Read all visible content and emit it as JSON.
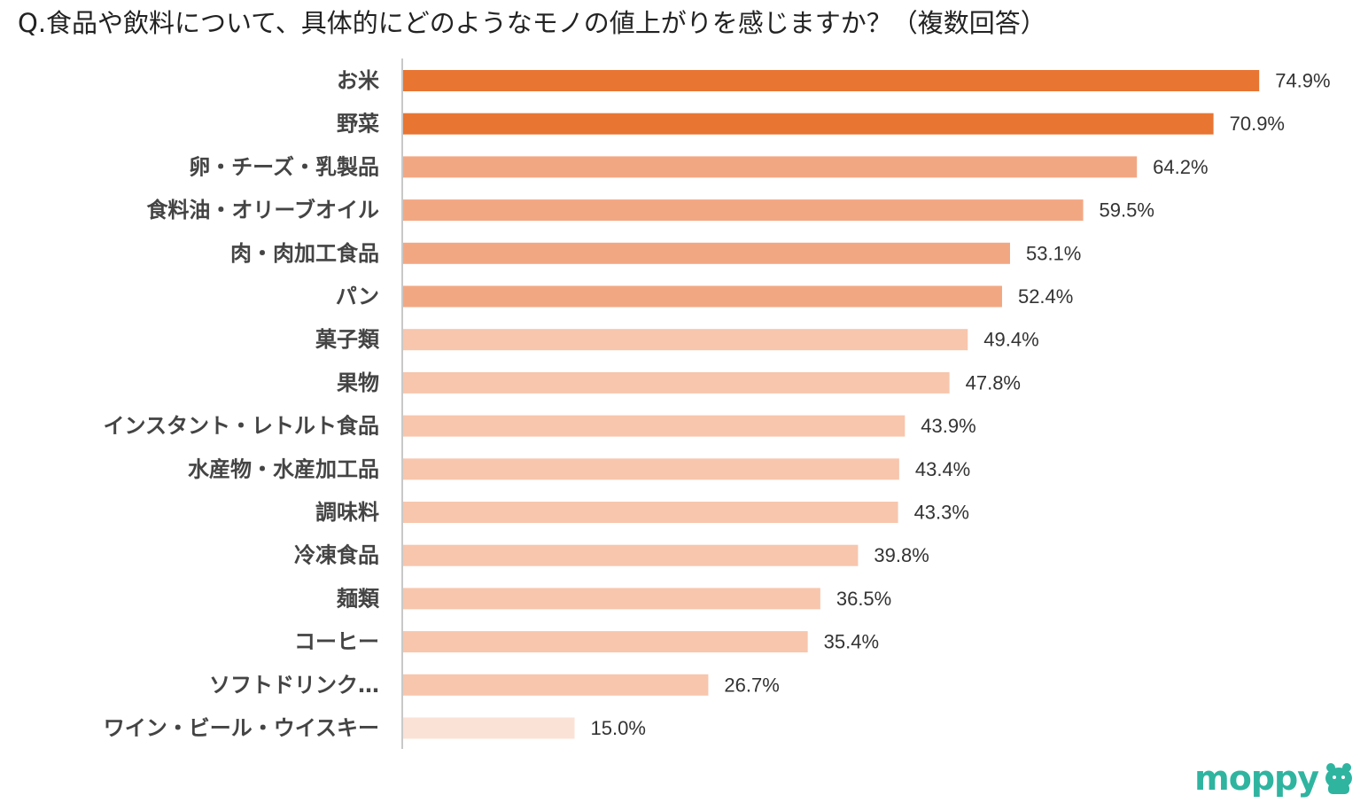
{
  "title": "Q.食品や飲料について、具体的にどのようなモノの値上がりを感じますか？（複数回答）",
  "chart_data": {
    "type": "bar",
    "orientation": "horizontal",
    "title": "Q.食品や飲料について、具体的にどのようなモノの値上がりを感じますか？（複数回答）",
    "xlabel": "",
    "ylabel": "",
    "xlim": [
      0,
      80
    ],
    "grid": false,
    "categories": [
      "お米",
      "野菜",
      "卵・チーズ・乳製品",
      "食料油・オリーブオイル",
      "肉・肉加工食品",
      "パン",
      "菓子類",
      "果物",
      "インスタント・レトルト食品",
      "水産物・水産加工品",
      "調味料",
      "冷凍食品",
      "麺類",
      "コーヒー",
      "ソフトドリンク…",
      "ワイン・ビール・ウイスキー"
    ],
    "values": [
      74.9,
      70.9,
      64.2,
      59.5,
      53.1,
      52.4,
      49.4,
      47.8,
      43.9,
      43.4,
      43.3,
      39.8,
      36.5,
      35.4,
      26.7,
      15.0
    ],
    "value_labels": [
      "74.9%",
      "70.9%",
      "64.2%",
      "59.5%",
      "53.1%",
      "52.4%",
      "49.4%",
      "47.8%",
      "43.9%",
      "43.4%",
      "43.3%",
      "39.8%",
      "36.5%",
      "35.4%",
      "26.7%",
      "15.0%"
    ],
    "bar_colors": [
      "#e87532",
      "#e87532",
      "#f2a783",
      "#f2a783",
      "#f2a783",
      "#f2a783",
      "#f7c6ad",
      "#f7c6ad",
      "#f7c6ad",
      "#f7c6ad",
      "#f7c6ad",
      "#f7c6ad",
      "#f7c6ad",
      "#f7c6ad",
      "#f7c6ad",
      "#fbe2d6"
    ],
    "axis_color": "#c8c8c8"
  },
  "logo": {
    "text": "moppy",
    "color": "#2fb4a0"
  }
}
